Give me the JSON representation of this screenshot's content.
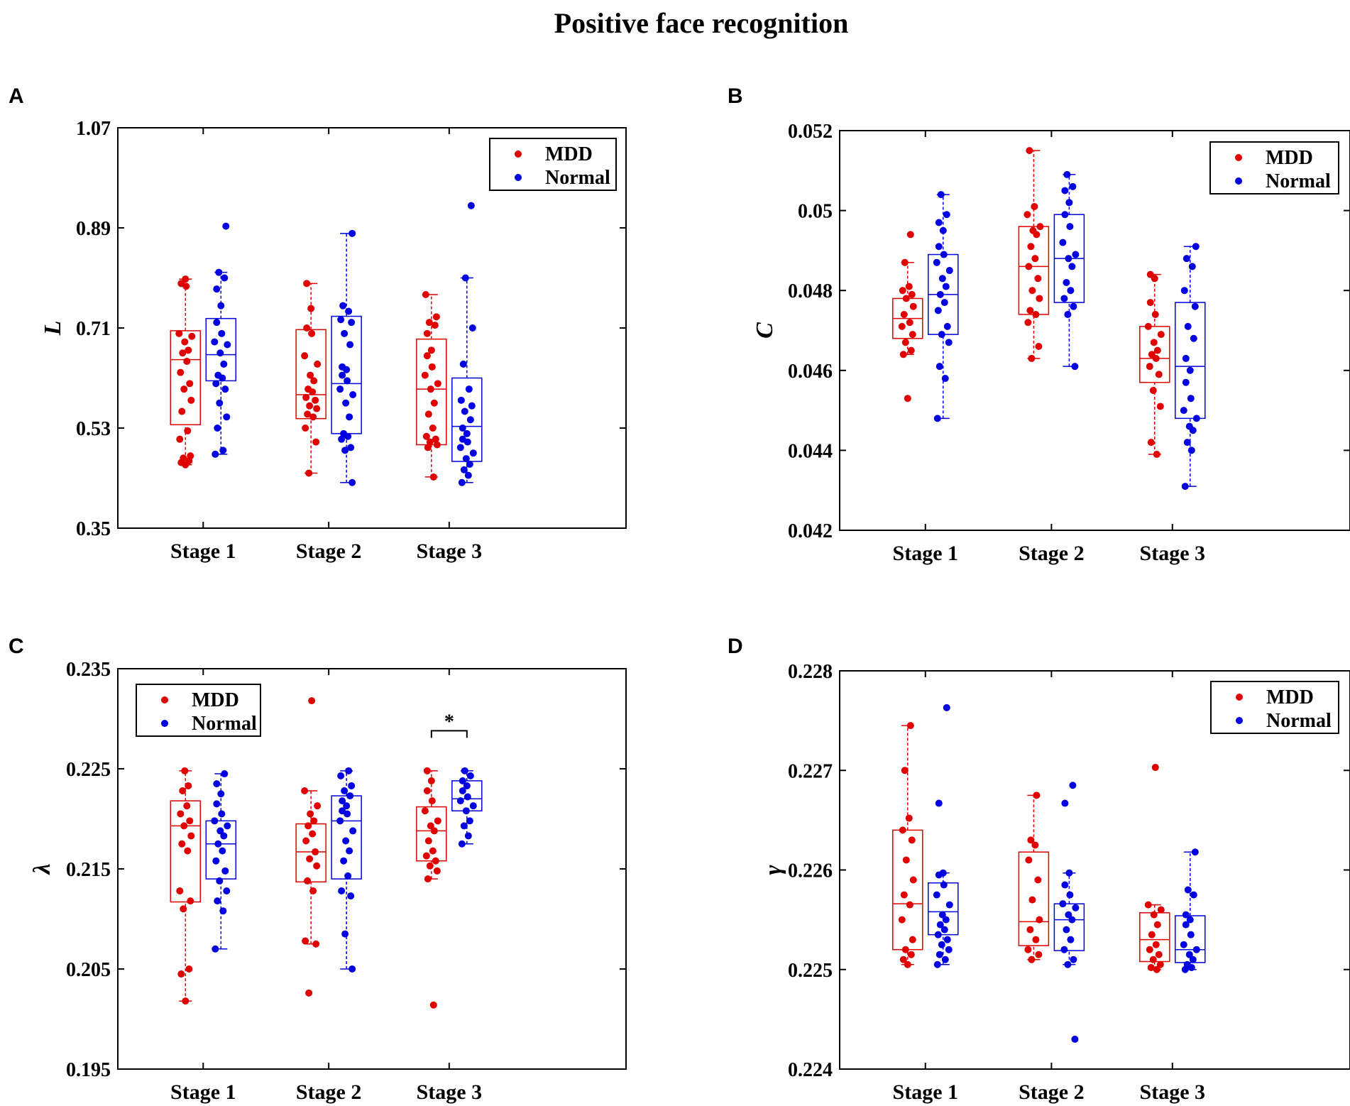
{
  "figure_title": "Positive face recognition",
  "colors": {
    "mdd": "#e00000",
    "normal": "#0000e0",
    "axis": "#000000"
  },
  "chart_data": [
    {
      "panel": "A",
      "type": "box-scatter",
      "ylabel": "L",
      "ylabel_style": "italic-bold",
      "ylim": [
        0.35,
        1.07
      ],
      "yticks": [
        "1.07",
        "0.89",
        "0.71",
        "0.53",
        "0.35"
      ],
      "categories": [
        "Stage 1",
        "Stage 2",
        "Stage 3"
      ],
      "legend": {
        "placement": "top-right",
        "entries": [
          "MDD",
          "Normal"
        ]
      },
      "series": [
        {
          "name": "MDD",
          "groups": [
            {
              "q1": 0.536,
              "median": 0.653,
              "q3": 0.705,
              "whisker_low": 0.464,
              "whisker_high": 0.798,
              "points": [
                0.464,
                0.468,
                0.471,
                0.476,
                0.48,
                0.51,
                0.525,
                0.56,
                0.58,
                0.6,
                0.61,
                0.63,
                0.65,
                0.665,
                0.67,
                0.685,
                0.695,
                0.7,
                0.785,
                0.79,
                0.798
              ]
            },
            {
              "q1": 0.547,
              "median": 0.59,
              "q3": 0.707,
              "whisker_low": 0.449,
              "whisker_high": 0.79,
              "points": [
                0.449,
                0.505,
                0.53,
                0.55,
                0.555,
                0.565,
                0.57,
                0.58,
                0.585,
                0.595,
                0.6,
                0.615,
                0.625,
                0.645,
                0.66,
                0.7,
                0.71,
                0.745,
                0.79
              ]
            },
            {
              "q1": 0.5,
              "median": 0.6,
              "q3": 0.69,
              "whisker_low": 0.442,
              "whisker_high": 0.77,
              "points": [
                0.442,
                0.495,
                0.5,
                0.505,
                0.51,
                0.515,
                0.53,
                0.555,
                0.575,
                0.6,
                0.61,
                0.625,
                0.64,
                0.66,
                0.67,
                0.7,
                0.715,
                0.72,
                0.73,
                0.77
              ]
            }
          ]
        },
        {
          "name": "Normal",
          "groups": [
            {
              "q1": 0.615,
              "median": 0.662,
              "q3": 0.727,
              "whisker_low": 0.483,
              "whisker_high": 0.81,
              "points": [
                0.483,
                0.49,
                0.53,
                0.55,
                0.575,
                0.6,
                0.61,
                0.62,
                0.625,
                0.645,
                0.665,
                0.68,
                0.685,
                0.7,
                0.72,
                0.75,
                0.78,
                0.8,
                0.81,
                0.893
              ]
            },
            {
              "q1": 0.52,
              "median": 0.61,
              "q3": 0.731,
              "whisker_low": 0.432,
              "whisker_high": 0.88,
              "points": [
                0.432,
                0.49,
                0.495,
                0.51,
                0.515,
                0.52,
                0.55,
                0.575,
                0.59,
                0.6,
                0.615,
                0.625,
                0.635,
                0.64,
                0.68,
                0.7,
                0.72,
                0.725,
                0.74,
                0.75,
                0.88
              ]
            },
            {
              "q1": 0.47,
              "median": 0.533,
              "q3": 0.62,
              "whisker_low": 0.432,
              "whisker_high": 0.8,
              "points": [
                0.432,
                0.445,
                0.455,
                0.465,
                0.475,
                0.485,
                0.495,
                0.505,
                0.51,
                0.52,
                0.53,
                0.545,
                0.56,
                0.57,
                0.58,
                0.6,
                0.645,
                0.71,
                0.8,
                0.93
              ]
            }
          ]
        }
      ]
    },
    {
      "panel": "B",
      "type": "box-scatter",
      "ylabel": "C",
      "ylabel_style": "italic-bold",
      "ylim": [
        0.042,
        0.052
      ],
      "yticks": [
        "0.052",
        "0.05",
        "0.048",
        "0.046",
        "0.044",
        "0.042"
      ],
      "categories": [
        "Stage 1",
        "Stage 2",
        "Stage 3"
      ],
      "legend": {
        "placement": "top-right",
        "entries": [
          "MDD",
          "Normal"
        ]
      },
      "series": [
        {
          "name": "MDD",
          "groups": [
            {
              "q1": 0.0468,
              "median": 0.0473,
              "q3": 0.0478,
              "whisker_low": 0.0464,
              "whisker_high": 0.0487,
              "points": [
                0.0453,
                0.0464,
                0.0465,
                0.0467,
                0.0469,
                0.0471,
                0.0472,
                0.0474,
                0.0476,
                0.0478,
                0.0479,
                0.048,
                0.0481,
                0.0487,
                0.0494
              ]
            },
            {
              "q1": 0.0474,
              "median": 0.0486,
              "q3": 0.0496,
              "whisker_low": 0.0463,
              "whisker_high": 0.0515,
              "points": [
                0.0463,
                0.0466,
                0.0472,
                0.0474,
                0.0475,
                0.0478,
                0.048,
                0.0483,
                0.0486,
                0.0488,
                0.0491,
                0.0494,
                0.0495,
                0.0496,
                0.0499,
                0.0501,
                0.0515
              ]
            },
            {
              "q1": 0.0457,
              "median": 0.0463,
              "q3": 0.0471,
              "whisker_low": 0.0439,
              "whisker_high": 0.0484,
              "points": [
                0.0439,
                0.0442,
                0.0451,
                0.0455,
                0.0459,
                0.0461,
                0.0463,
                0.0464,
                0.0465,
                0.0467,
                0.0469,
                0.0471,
                0.0474,
                0.0477,
                0.0483,
                0.0484
              ]
            }
          ]
        },
        {
          "name": "Normal",
          "groups": [
            {
              "q1": 0.0469,
              "median": 0.0479,
              "q3": 0.0489,
              "whisker_low": 0.0448,
              "whisker_high": 0.0504,
              "points": [
                0.0448,
                0.0458,
                0.0461,
                0.0467,
                0.0469,
                0.0471,
                0.0475,
                0.0477,
                0.0479,
                0.0481,
                0.0483,
                0.0485,
                0.0487,
                0.0489,
                0.0491,
                0.0495,
                0.0497,
                0.0499,
                0.0504
              ]
            },
            {
              "q1": 0.0477,
              "median": 0.0488,
              "q3": 0.0499,
              "whisker_low": 0.0461,
              "whisker_high": 0.0509,
              "points": [
                0.0461,
                0.0474,
                0.0476,
                0.0478,
                0.048,
                0.0482,
                0.0486,
                0.0488,
                0.0489,
                0.0492,
                0.0496,
                0.0499,
                0.0502,
                0.0505,
                0.0506,
                0.0509
              ]
            },
            {
              "q1": 0.0448,
              "median": 0.0461,
              "q3": 0.0477,
              "whisker_low": 0.0431,
              "whisker_high": 0.0491,
              "points": [
                0.0431,
                0.044,
                0.0442,
                0.0445,
                0.0446,
                0.0448,
                0.045,
                0.0453,
                0.0457,
                0.046,
                0.0463,
                0.0468,
                0.0471,
                0.0476,
                0.048,
                0.0486,
                0.0488,
                0.0491
              ]
            }
          ]
        }
      ]
    },
    {
      "panel": "C",
      "type": "box-scatter",
      "ylabel": "λ",
      "ylabel_style": "italic-bold",
      "ylim": [
        0.195,
        0.235
      ],
      "yticks": [
        "0.235",
        "0.225",
        "0.215",
        "0.205",
        "0.195"
      ],
      "categories": [
        "Stage 1",
        "Stage 2",
        "Stage 3"
      ],
      "legend": {
        "placement": "top-left",
        "entries": [
          "MDD",
          "Normal"
        ]
      },
      "significance": {
        "group_index": 2,
        "label": "*"
      },
      "series": [
        {
          "name": "MDD",
          "groups": [
            {
              "q1": 0.2117,
              "median": 0.2193,
              "q3": 0.2218,
              "whisker_low": 0.2018,
              "whisker_high": 0.2248,
              "points": [
                0.2018,
                0.2045,
                0.205,
                0.211,
                0.2118,
                0.2128,
                0.2168,
                0.2175,
                0.2183,
                0.2193,
                0.2198,
                0.2205,
                0.2213,
                0.2228,
                0.2233,
                0.2248
              ]
            },
            {
              "q1": 0.2137,
              "median": 0.2167,
              "q3": 0.2195,
              "whisker_low": 0.2075,
              "whisker_high": 0.2228,
              "points": [
                0.2026,
                0.2075,
                0.2078,
                0.2128,
                0.2138,
                0.2153,
                0.216,
                0.2167,
                0.2178,
                0.2185,
                0.2193,
                0.2198,
                0.2205,
                0.2213,
                0.2228,
                0.2318
              ]
            },
            {
              "q1": 0.2158,
              "median": 0.2188,
              "q3": 0.2212,
              "whisker_low": 0.214,
              "whisker_high": 0.2248,
              "points": [
                0.2014,
                0.214,
                0.2148,
                0.2153,
                0.2158,
                0.2163,
                0.2168,
                0.2178,
                0.2188,
                0.2193,
                0.2198,
                0.2208,
                0.2218,
                0.2228,
                0.2238,
                0.2248
              ]
            }
          ]
        },
        {
          "name": "Normal",
          "groups": [
            {
              "q1": 0.214,
              "median": 0.2175,
              "q3": 0.2198,
              "whisker_low": 0.207,
              "whisker_high": 0.2245,
              "points": [
                0.207,
                0.2108,
                0.2118,
                0.2128,
                0.2138,
                0.2148,
                0.2158,
                0.2168,
                0.2175,
                0.2183,
                0.2188,
                0.2193,
                0.2198,
                0.2205,
                0.2215,
                0.2225,
                0.2235,
                0.2245
              ]
            },
            {
              "q1": 0.214,
              "median": 0.2198,
              "q3": 0.2223,
              "whisker_low": 0.205,
              "whisker_high": 0.2248,
              "points": [
                0.205,
                0.2085,
                0.2123,
                0.2128,
                0.2143,
                0.2158,
                0.2168,
                0.2178,
                0.2188,
                0.2198,
                0.2205,
                0.2208,
                0.2213,
                0.2218,
                0.2223,
                0.2228,
                0.2233,
                0.2243,
                0.2248
              ]
            },
            {
              "q1": 0.2208,
              "median": 0.222,
              "q3": 0.2238,
              "whisker_low": 0.2175,
              "whisker_high": 0.2248,
              "points": [
                0.2175,
                0.2183,
                0.2193,
                0.2198,
                0.2208,
                0.2213,
                0.2218,
                0.2222,
                0.2228,
                0.2233,
                0.2238,
                0.2243,
                0.2248
              ]
            }
          ]
        }
      ]
    },
    {
      "panel": "D",
      "type": "box-scatter",
      "ylabel": "γ",
      "ylabel_style": "italic-bold",
      "ylim": [
        0.224,
        0.228
      ],
      "yticks": [
        "0.228",
        "0.227",
        "0.226",
        "0.225",
        "0.224"
      ],
      "categories": [
        "Stage 1",
        "Stage 2",
        "Stage 3"
      ],
      "legend": {
        "placement": "top-right",
        "entries": [
          "MDD",
          "Normal"
        ]
      },
      "series": [
        {
          "name": "MDD",
          "groups": [
            {
              "q1": 0.2252,
              "median": 0.22566,
              "q3": 0.2264,
              "whisker_low": 0.22505,
              "whisker_high": 0.22745,
              "points": [
                0.22505,
                0.2251,
                0.22515,
                0.2252,
                0.2253,
                0.2255,
                0.22565,
                0.22575,
                0.2259,
                0.2261,
                0.2263,
                0.2264,
                0.22652,
                0.227,
                0.22745
              ]
            },
            {
              "q1": 0.22524,
              "median": 0.22548,
              "q3": 0.22618,
              "whisker_low": 0.2251,
              "whisker_high": 0.22675,
              "points": [
                0.2251,
                0.22515,
                0.2252,
                0.2253,
                0.2254,
                0.2255,
                0.2257,
                0.2259,
                0.2261,
                0.22625,
                0.2263,
                0.22675
              ]
            },
            {
              "q1": 0.22508,
              "median": 0.2253,
              "q3": 0.22557,
              "whisker_low": 0.225,
              "whisker_high": 0.22565,
              "points": [
                0.225,
                0.22502,
                0.22505,
                0.2251,
                0.22515,
                0.2252,
                0.22525,
                0.22535,
                0.22545,
                0.22555,
                0.2256,
                0.22565,
                0.22703
              ]
            }
          ]
        },
        {
          "name": "Normal",
          "groups": [
            {
              "q1": 0.22535,
              "median": 0.22558,
              "q3": 0.22587,
              "whisker_low": 0.22505,
              "whisker_high": 0.22597,
              "points": [
                0.22505,
                0.2251,
                0.22515,
                0.2252,
                0.22525,
                0.2253,
                0.22535,
                0.2254,
                0.22545,
                0.2255,
                0.22555,
                0.22565,
                0.22575,
                0.22585,
                0.22595,
                0.22597,
                0.22667,
                0.22763
              ]
            },
            {
              "q1": 0.22519,
              "median": 0.2255,
              "q3": 0.22566,
              "whisker_low": 0.22505,
              "whisker_high": 0.22597,
              "points": [
                0.2243,
                0.22505,
                0.2251,
                0.2252,
                0.2253,
                0.2254,
                0.2255,
                0.22555,
                0.22562,
                0.22566,
                0.22575,
                0.22585,
                0.22597,
                0.22667,
                0.22685
              ]
            },
            {
              "q1": 0.22507,
              "median": 0.2252,
              "q3": 0.22554,
              "whisker_low": 0.225,
              "whisker_high": 0.22618,
              "points": [
                0.225,
                0.22502,
                0.22505,
                0.2251,
                0.22515,
                0.2252,
                0.22525,
                0.22535,
                0.22545,
                0.2255,
                0.22555,
                0.22575,
                0.2258,
                0.22618
              ]
            }
          ]
        }
      ]
    }
  ]
}
